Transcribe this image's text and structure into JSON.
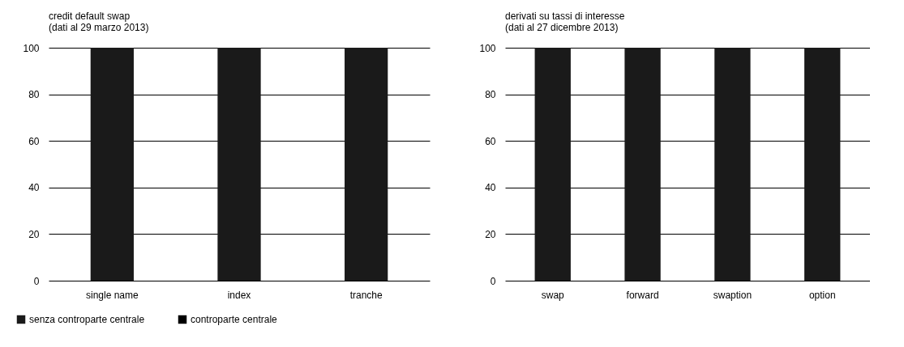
{
  "chart_data": [
    {
      "type": "bar",
      "title": "credit default swap",
      "subtitle": "(dati al 29 marzo 2013)",
      "categories": [
        "single name",
        "index",
        "tranche"
      ],
      "stacked": true,
      "series": [
        {
          "name": "senza controparte centrale",
          "color": "#1a1a1a",
          "values": [
            100,
            100,
            100
          ]
        },
        {
          "name": "controparte centrale",
          "color": "#000000",
          "values": [
            null,
            null,
            null
          ]
        }
      ],
      "ylim": [
        0,
        100
      ],
      "yticks": [
        0,
        20,
        40,
        60,
        80,
        100
      ],
      "grid": "y",
      "legend": "bottom left"
    },
    {
      "type": "bar",
      "title": "derivati su tassi di interesse",
      "subtitle": "(dati al 27 dicembre 2013)",
      "categories": [
        "swap",
        "forward",
        "swaption",
        "option"
      ],
      "stacked": true,
      "series": [
        {
          "color": "#1a1a1a",
          "values": [
            100,
            100,
            100,
            100
          ]
        }
      ],
      "ylim": [
        0,
        100
      ],
      "yticks": [
        0,
        20,
        40,
        60,
        80,
        100
      ],
      "grid": "y"
    }
  ]
}
